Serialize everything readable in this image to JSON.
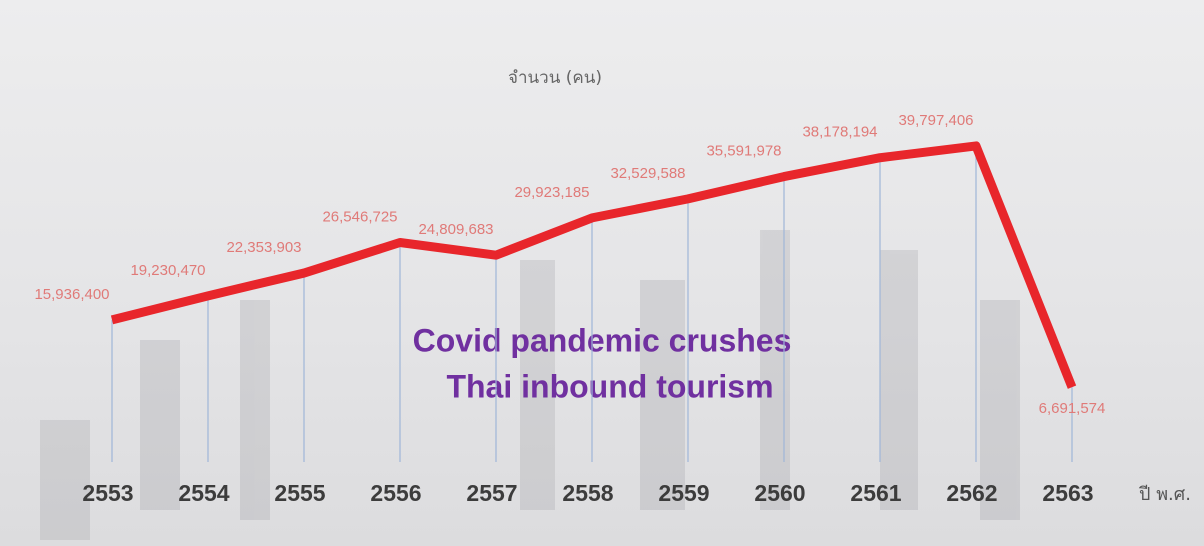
{
  "chart_data": {
    "type": "line",
    "title": [
      "Covid pandemic crushes",
      "Thai inbound tourism"
    ],
    "y_label": "จำนวน (คน)",
    "x_label": "ปี พ.ศ.",
    "categories": [
      "2553",
      "2554",
      "2555",
      "2556",
      "2557",
      "2558",
      "2559",
      "2560",
      "2561",
      "2562",
      "2563"
    ],
    "values": [
      15936400,
      19230470,
      22353903,
      26546725,
      24809683,
      29923185,
      32529588,
      35591978,
      38178194,
      39797406,
      6691574
    ],
    "value_labels": [
      "15,936,400",
      "19,230,470",
      "22,353,903",
      "26,546,725",
      "24,809,683",
      "29,923,185",
      "32,529,588",
      "35,591,978",
      "38,178,194",
      "39,797,406",
      "6,691,574"
    ],
    "color": "#e8262b",
    "ylim": [
      0,
      45000000
    ]
  }
}
